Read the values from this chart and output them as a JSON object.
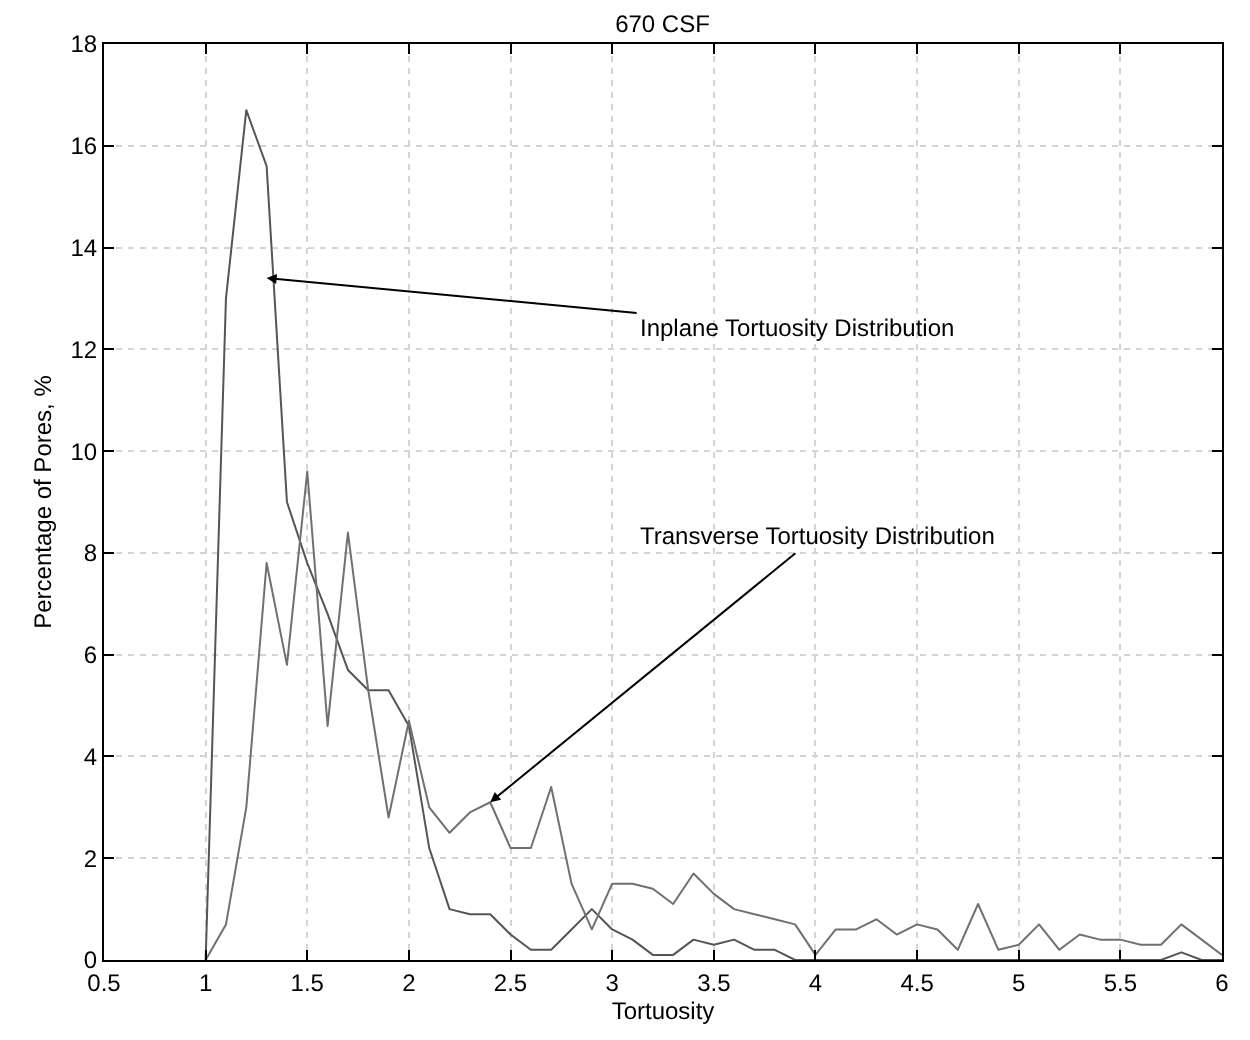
{
  "chart_data": {
    "type": "line",
    "title": "670 CSF",
    "xlabel": "Tortuosity",
    "ylabel": "Percentage of Pores, %",
    "x": [
      1.0,
      1.1,
      1.2,
      1.3,
      1.4,
      1.5,
      1.6,
      1.7,
      1.8,
      1.9,
      2.0,
      2.1,
      2.2,
      2.3,
      2.4,
      2.5,
      2.6,
      2.7,
      2.8,
      2.9,
      3.0,
      3.1,
      3.2,
      3.3,
      3.4,
      3.5,
      3.6,
      3.7,
      3.8,
      3.9,
      4.0,
      4.1,
      4.2,
      4.3,
      4.4,
      4.5,
      4.6,
      4.7,
      4.8,
      4.9,
      5.0,
      5.1,
      5.2,
      5.3,
      5.4,
      5.5,
      5.6,
      5.7,
      5.8,
      5.9,
      6.0
    ],
    "series": [
      {
        "color": "#555555",
        "values": [
          0,
          13,
          16.7,
          15.6,
          9.0,
          7.8,
          6.8,
          5.7,
          5.3,
          5.3,
          4.6,
          2.2,
          1.0,
          0.9,
          0.9,
          0.5,
          0.2,
          0.2,
          0.6,
          1.0,
          0.6,
          0.4,
          0.1,
          0.1,
          0.4,
          0.3,
          0.4,
          0.2,
          0.2,
          0,
          0,
          0,
          0,
          0,
          0,
          0,
          0,
          0,
          0,
          0,
          0,
          0,
          0,
          0,
          0,
          0,
          0,
          0,
          0.15,
          0,
          0
        ]
      },
      {
        "color": "#707070",
        "values": [
          0,
          0.7,
          3.0,
          7.8,
          5.8,
          9.6,
          4.6,
          8.4,
          5.3,
          2.8,
          4.7,
          3.0,
          2.5,
          2.9,
          3.1,
          2.2,
          2.2,
          3.4,
          1.5,
          0.6,
          1.5,
          1.5,
          1.4,
          1.1,
          1.7,
          1.3,
          1.0,
          0.9,
          0.8,
          0.7,
          0.1,
          0.6,
          0.6,
          0.8,
          0.5,
          0.7,
          0.6,
          0.2,
          1.1,
          0.2,
          0.3,
          0.7,
          0.2,
          0.5,
          0.4,
          0.4,
          0.3,
          0.3,
          0.7,
          0.4,
          0.1
        ]
      }
    ],
    "annotations": [
      {
        "text": "Inplane Tortuosity Distribution",
        "x": 1.3,
        "y": 13.4
      },
      {
        "text": "Transverse Tortuosity Distribution",
        "x": 2.4,
        "y": 3.1
      }
    ],
    "xlim": [
      0.5,
      6
    ],
    "xticks": [
      0.5,
      1,
      1.5,
      2,
      2.5,
      3,
      3.5,
      4,
      4.5,
      5,
      5.5,
      6
    ],
    "ylim": [
      0,
      18
    ],
    "yticks": [
      0,
      2,
      4,
      6,
      8,
      10,
      12,
      14,
      16,
      18
    ],
    "grid": true,
    "marker": "none",
    "line_style": "solid"
  }
}
